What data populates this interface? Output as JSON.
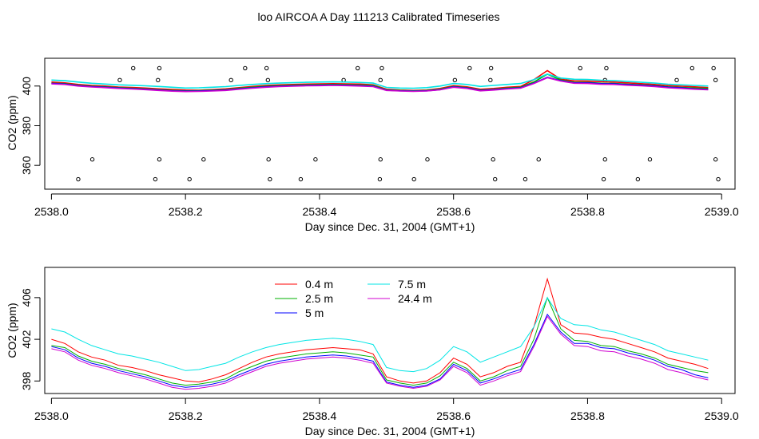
{
  "title": "loo AIRCOA A  Day 111213  Calibrated Timeseries",
  "colors": {
    "0.4 m": "#ff0000",
    "2.5 m": "#00b000",
    "5 m": "#0000ff",
    "7.5 m": "#00e5e5",
    "24.4 m": "#d000d0"
  },
  "chart_data": [
    {
      "type": "line",
      "title": "",
      "xlabel": "Day since Dec. 31, 2004 (GMT+1)",
      "ylabel": "CO2 (ppm)",
      "xlim": [
        2537.99,
        2539.02
      ],
      "ylim": [
        348,
        414
      ],
      "x_ticks": [
        "2538.0",
        "2538.2",
        "2538.4",
        "2538.6",
        "2538.8",
        "2539.0"
      ],
      "y_ticks": [
        "360",
        "380",
        "400"
      ],
      "y_tick_values": [
        360,
        380,
        400
      ],
      "series_source": "same five heights as lower panel",
      "outlier_points": [
        {
          "x": 2538.122,
          "y": 409
        },
        {
          "x": 2538.161,
          "y": 409
        },
        {
          "x": 2538.289,
          "y": 409
        },
        {
          "x": 2538.321,
          "y": 409
        },
        {
          "x": 2538.457,
          "y": 409
        },
        {
          "x": 2538.493,
          "y": 409
        },
        {
          "x": 2538.624,
          "y": 409
        },
        {
          "x": 2538.656,
          "y": 409
        },
        {
          "x": 2538.789,
          "y": 409
        },
        {
          "x": 2538.828,
          "y": 409
        },
        {
          "x": 2538.956,
          "y": 409
        },
        {
          "x": 2538.988,
          "y": 409
        },
        {
          "x": 2538.102,
          "y": 403
        },
        {
          "x": 2538.159,
          "y": 403
        },
        {
          "x": 2538.268,
          "y": 403
        },
        {
          "x": 2538.323,
          "y": 403
        },
        {
          "x": 2538.436,
          "y": 403
        },
        {
          "x": 2538.491,
          "y": 403
        },
        {
          "x": 2538.602,
          "y": 403
        },
        {
          "x": 2538.655,
          "y": 403
        },
        {
          "x": 2538.766,
          "y": 403
        },
        {
          "x": 2538.826,
          "y": 403
        },
        {
          "x": 2538.933,
          "y": 403
        },
        {
          "x": 2538.991,
          "y": 403
        },
        {
          "x": 2538.061,
          "y": 363
        },
        {
          "x": 2538.161,
          "y": 363
        },
        {
          "x": 2538.227,
          "y": 363
        },
        {
          "x": 2538.324,
          "y": 363
        },
        {
          "x": 2538.394,
          "y": 363
        },
        {
          "x": 2538.491,
          "y": 363
        },
        {
          "x": 2538.561,
          "y": 363
        },
        {
          "x": 2538.659,
          "y": 363
        },
        {
          "x": 2538.727,
          "y": 363
        },
        {
          "x": 2538.826,
          "y": 363
        },
        {
          "x": 2538.893,
          "y": 363
        },
        {
          "x": 2538.991,
          "y": 363
        },
        {
          "x": 2538.04,
          "y": 353
        },
        {
          "x": 2538.155,
          "y": 353
        },
        {
          "x": 2538.206,
          "y": 353
        },
        {
          "x": 2538.326,
          "y": 353
        },
        {
          "x": 2538.372,
          "y": 353
        },
        {
          "x": 2538.49,
          "y": 353
        },
        {
          "x": 2538.541,
          "y": 353
        },
        {
          "x": 2538.662,
          "y": 353
        },
        {
          "x": 2538.707,
          "y": 353
        },
        {
          "x": 2538.824,
          "y": 353
        },
        {
          "x": 2538.875,
          "y": 353
        },
        {
          "x": 2538.995,
          "y": 353
        }
      ]
    },
    {
      "type": "line",
      "title": "",
      "xlabel": "Day since Dec. 31, 2004 (GMT+1)",
      "ylabel": "CO2 (ppm)",
      "xlim": [
        2537.99,
        2539.02
      ],
      "ylim": [
        396.8,
        408.9
      ],
      "x_ticks": [
        "2538.0",
        "2538.2",
        "2538.4",
        "2538.6",
        "2538.8",
        "2539.0"
      ],
      "y_ticks": [
        "398",
        "402",
        "406"
      ],
      "y_tick_values": [
        398,
        402,
        406
      ],
      "legend_position": "top-center",
      "x": [
        2538.0,
        2538.02,
        2538.04,
        2538.06,
        2538.08,
        2538.1,
        2538.12,
        2538.14,
        2538.16,
        2538.18,
        2538.2,
        2538.22,
        2538.24,
        2538.26,
        2538.28,
        2538.3,
        2538.32,
        2538.34,
        2538.36,
        2538.38,
        2538.4,
        2538.42,
        2538.44,
        2538.46,
        2538.48,
        2538.5,
        2538.52,
        2538.54,
        2538.56,
        2538.58,
        2538.6,
        2538.62,
        2538.64,
        2538.66,
        2538.68,
        2538.7,
        2538.72,
        2538.74,
        2538.76,
        2538.78,
        2538.8,
        2538.82,
        2538.84,
        2538.86,
        2538.88,
        2538.9,
        2538.92,
        2538.94,
        2538.96,
        2538.98
      ],
      "series": [
        {
          "name": "0.4 m",
          "values": [
            402.0,
            401.6,
            400.8,
            400.3,
            400.0,
            399.5,
            399.3,
            399.0,
            398.6,
            398.3,
            398.0,
            397.9,
            398.2,
            398.6,
            399.2,
            399.8,
            400.3,
            400.6,
            400.8,
            401.0,
            401.1,
            401.2,
            401.1,
            401.0,
            400.6,
            398.4,
            398.0,
            397.8,
            398.0,
            398.8,
            400.2,
            399.6,
            398.4,
            398.8,
            399.4,
            399.8,
            403.2,
            407.8,
            403.4,
            402.6,
            402.5,
            402.2,
            402.0,
            401.6,
            401.2,
            400.8,
            400.2,
            399.9,
            399.6,
            399.2
          ]
        },
        {
          "name": "2.5 m",
          "values": [
            401.4,
            401.2,
            400.4,
            399.9,
            399.6,
            399.2,
            398.9,
            398.6,
            398.2,
            397.8,
            397.6,
            397.7,
            397.9,
            398.2,
            398.9,
            399.4,
            399.9,
            400.2,
            400.4,
            400.6,
            400.7,
            400.8,
            400.7,
            400.5,
            400.3,
            398.1,
            397.8,
            397.6,
            397.8,
            398.5,
            399.8,
            399.2,
            398.0,
            398.4,
            399.0,
            399.4,
            402.0,
            406.0,
            403.0,
            401.9,
            401.8,
            401.4,
            401.3,
            400.9,
            400.6,
            400.2,
            399.6,
            399.3,
            399.0,
            398.8
          ]
        },
        {
          "name": "5 m",
          "values": [
            401.3,
            401.0,
            400.2,
            399.7,
            399.4,
            399.0,
            398.7,
            398.4,
            398.0,
            397.6,
            397.4,
            397.5,
            397.7,
            398.0,
            398.6,
            399.1,
            399.6,
            399.9,
            400.1,
            400.3,
            400.4,
            400.5,
            400.4,
            400.2,
            399.9,
            397.9,
            397.6,
            397.4,
            397.6,
            398.2,
            399.6,
            399.0,
            397.8,
            398.2,
            398.7,
            399.1,
            401.5,
            404.4,
            402.7,
            401.6,
            401.6,
            401.2,
            401.1,
            400.7,
            400.4,
            400.0,
            399.4,
            399.1,
            398.6,
            398.3
          ]
        },
        {
          "name": "7.5 m",
          "values": [
            403.0,
            402.7,
            402.0,
            401.4,
            401.0,
            400.6,
            400.4,
            400.1,
            399.8,
            399.4,
            399.0,
            399.1,
            399.4,
            399.7,
            400.3,
            400.8,
            401.2,
            401.5,
            401.7,
            401.9,
            402.0,
            402.1,
            402.0,
            401.8,
            401.5,
            399.3,
            399.0,
            398.9,
            399.2,
            400.0,
            401.3,
            400.8,
            399.8,
            400.3,
            400.8,
            401.3,
            403.2,
            406.0,
            404.0,
            403.4,
            403.3,
            402.9,
            402.7,
            402.3,
            401.9,
            401.5,
            400.9,
            400.6,
            400.3,
            400.0
          ]
        },
        {
          "name": "24.4 m",
          "values": [
            401.1,
            400.8,
            400.0,
            399.5,
            399.2,
            398.8,
            398.5,
            398.2,
            397.8,
            397.4,
            397.2,
            397.3,
            397.5,
            397.8,
            398.4,
            398.9,
            399.4,
            399.7,
            399.9,
            400.1,
            400.2,
            400.3,
            400.2,
            400.0,
            399.7,
            397.8,
            397.5,
            397.3,
            397.5,
            398.1,
            399.4,
            398.8,
            397.6,
            398.0,
            398.5,
            398.9,
            401.3,
            404.2,
            402.5,
            401.4,
            401.3,
            400.9,
            400.8,
            400.4,
            400.1,
            399.7,
            399.1,
            398.8,
            398.4,
            398.1
          ]
        }
      ]
    }
  ]
}
